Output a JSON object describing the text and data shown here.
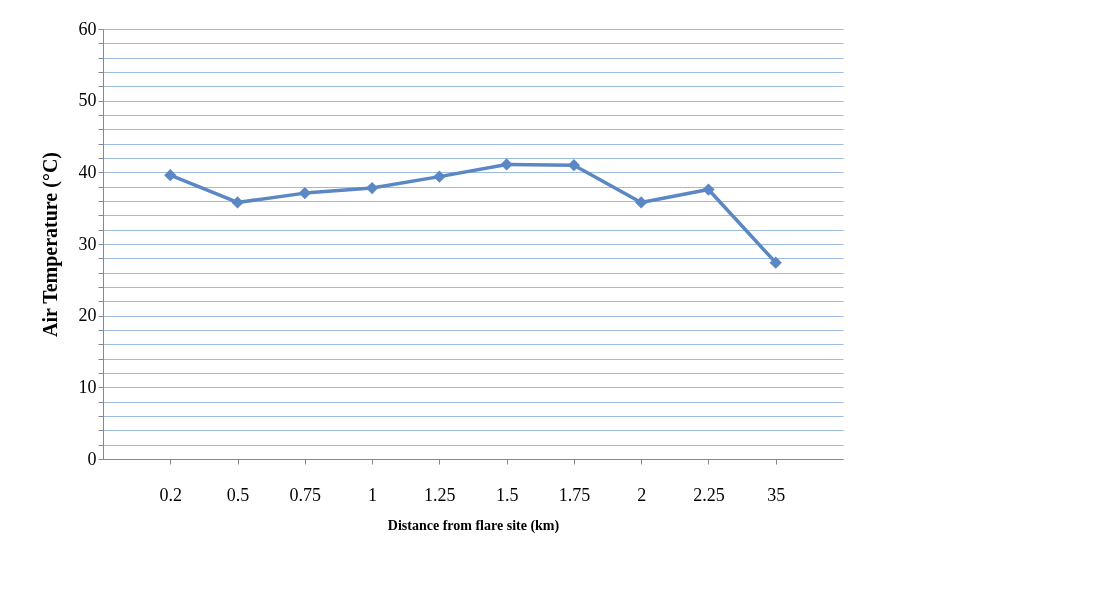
{
  "chart_data": {
    "type": "line",
    "xlabel": "Distance from flare site (km)",
    "ylabel": "Air Temperature (°C)",
    "categories": [
      "0.2",
      "0.5",
      "0.75",
      "1",
      "1.25",
      "1.5",
      "1.75",
      "2",
      "2.25",
      "35"
    ],
    "series": [
      {
        "color": "#5b87c5",
        "values": [
          39.6,
          35.8,
          37.1,
          37.8,
          39.4,
          41.1,
          41.0,
          35.8,
          37.6,
          27.4
        ]
      }
    ],
    "ylim": [
      0,
      60
    ],
    "yticks": [
      0,
      {
        "value": 2,
        "label": null
      },
      {
        "value": 4,
        "label": null
      },
      {
        "value": 6,
        "label": null
      },
      {
        "value": 8,
        "label": null
      },
      10,
      {
        "value": 12,
        "label": null
      },
      {
        "value": 14,
        "label": null
      },
      {
        "value": 16,
        "label": null
      },
      {
        "value": 18,
        "label": null
      },
      20,
      {
        "value": 22,
        "label": null
      },
      {
        "value": 24,
        "label": null
      },
      {
        "value": 26,
        "label": null
      },
      {
        "value": 28,
        "label": null
      },
      30,
      {
        "value": 32,
        "label": null
      },
      {
        "value": 34,
        "label": null
      },
      {
        "value": 36,
        "label": null
      },
      {
        "value": 38,
        "label": null
      },
      40,
      {
        "value": 42,
        "label": null
      },
      {
        "value": 44,
        "label": null
      },
      {
        "value": 46,
        "label": null
      },
      {
        "value": 48,
        "label": null
      },
      50,
      {
        "value": 52,
        "label": null
      },
      {
        "value": 54,
        "label": null
      },
      {
        "value": 56,
        "label": null
      },
      {
        "value": 58,
        "label": null
      },
      60
    ],
    "grid": "y",
    "marker": "diamond",
    "line_style": "solid"
  }
}
